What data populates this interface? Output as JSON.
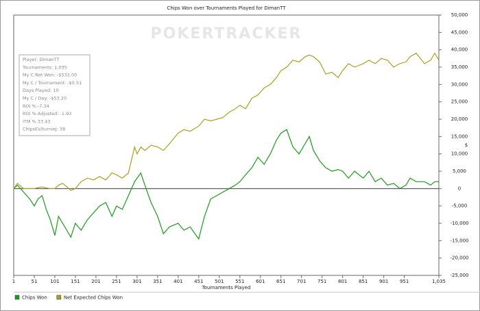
{
  "chart_data": {
    "type": "line",
    "title": "Chips Won over Tournaments Played for DimanTT",
    "watermark": "POKERTRACKER",
    "x_label": "Tournaments Played",
    "y_label": "$",
    "info": [
      "Player: DimanTT",
      "Tournaments: 1,035",
      "My C Net Won: -$532.00",
      "My C / Tournament: -$0.51",
      "Days Played: 10",
      "My C / Day: -$53.20",
      "ROI % -7.34",
      "ROI % Adjusted: -1.93",
      "ITM % 33.43",
      "ChipsEV/turniej: 38"
    ],
    "legend": "bottom-left",
    "x": [
      1,
      10,
      25,
      40,
      51,
      60,
      70,
      80,
      90,
      101,
      110,
      120,
      130,
      140,
      151,
      165,
      180,
      195,
      210,
      225,
      240,
      251,
      265,
      280,
      295,
      301,
      310,
      320,
      335,
      351,
      365,
      380,
      401,
      415,
      430,
      451,
      465,
      480,
      495,
      510,
      525,
      540,
      551,
      565,
      580,
      595,
      610,
      625,
      640,
      651,
      665,
      680,
      695,
      710,
      720,
      730,
      745,
      760,
      775,
      790,
      801,
      815,
      830,
      851,
      865,
      880,
      895,
      910,
      925,
      940,
      955,
      965,
      980,
      1000,
      1015,
      1025,
      1035
    ],
    "series": [
      {
        "name": "Chips Won",
        "color": "#1a9a1a",
        "values": [
          0,
          1000,
          -1000,
          -3000,
          -5000,
          -3000,
          -2000,
          -6000,
          -9000,
          -13500,
          -8000,
          -10000,
          -12000,
          -14000,
          -10000,
          -12000,
          -9000,
          -7000,
          -5000,
          -4000,
          -8000,
          -5000,
          -6000,
          -2000,
          2000,
          3000,
          4500,
          1000,
          -4000,
          -8000,
          -13000,
          -11000,
          -10000,
          -12000,
          -11000,
          -14500,
          -8000,
          -3000,
          -2000,
          -1000,
          0,
          1000,
          2000,
          4000,
          6000,
          9000,
          7000,
          10000,
          14000,
          16000,
          17000,
          12000,
          10000,
          13000,
          15000,
          11000,
          8000,
          6000,
          5000,
          5500,
          5000,
          3000,
          5000,
          3000,
          5000,
          2000,
          3000,
          1000,
          1500,
          0,
          1000,
          3000,
          2000,
          2000,
          1000,
          2000,
          2000
        ]
      },
      {
        "name": "Net Expected Chips Won",
        "color": "#a8a020",
        "values": [
          0,
          1500,
          0,
          0,
          0,
          300,
          500,
          200,
          0,
          0,
          1000,
          1500,
          500,
          -500,
          0,
          2000,
          3000,
          2500,
          3500,
          2500,
          4500,
          4000,
          3000,
          4500,
          12000,
          10000,
          12000,
          11000,
          12500,
          12000,
          11000,
          13000,
          16000,
          17000,
          16500,
          18000,
          20000,
          19500,
          20000,
          20500,
          22000,
          23000,
          24000,
          23000,
          26000,
          27000,
          29000,
          30000,
          32000,
          34000,
          35000,
          37000,
          36500,
          38000,
          38500,
          38000,
          36500,
          33000,
          33500,
          32000,
          34000,
          36000,
          35000,
          36000,
          37000,
          36000,
          37500,
          37000,
          35000,
          36000,
          36500,
          38000,
          39000,
          36000,
          37000,
          39000,
          37000
        ]
      }
    ],
    "xlim": [
      1,
      1035
    ],
    "xticks": [
      1,
      51,
      101,
      151,
      201,
      251,
      301,
      351,
      401,
      451,
      501,
      551,
      601,
      651,
      701,
      751,
      801,
      851,
      901,
      951,
      {
        "value": 1035,
        "label": "1,035"
      }
    ],
    "ylim": [
      -25000,
      50000
    ],
    "yticks": [
      {
        "value": -25000,
        "label": "-25,000"
      },
      {
        "value": -20000,
        "label": "-20,000"
      },
      {
        "value": -15000,
        "label": "-15,000"
      },
      {
        "value": -10000,
        "label": "-10,000"
      },
      {
        "value": -5000,
        "label": "-5,000"
      },
      0,
      {
        "value": 5000,
        "label": "5,000"
      },
      {
        "value": 10000,
        "label": "10,000"
      },
      {
        "value": 15000,
        "label": "15,000"
      },
      {
        "value": 20000,
        "label": "20,000"
      },
      {
        "value": 25000,
        "label": "25,000"
      },
      {
        "value": 30000,
        "label": "30,000"
      },
      {
        "value": 35000,
        "label": "35,000"
      },
      {
        "value": 40000,
        "label": "40,000"
      },
      {
        "value": 45000,
        "label": "45,000"
      },
      {
        "value": 50000,
        "label": "50,000"
      }
    ]
  }
}
